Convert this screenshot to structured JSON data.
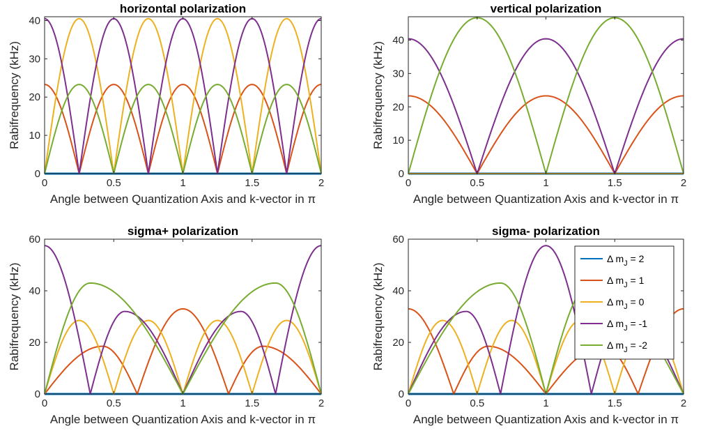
{
  "chart_data": [
    {
      "type": "line",
      "title": "horizontal polarization",
      "xlabel": "Angle between Quantization Axis and k-vector in π",
      "ylabel": "Rabifrequency (kHz)",
      "xlim": [
        0,
        2
      ],
      "ylim": [
        0,
        41
      ],
      "xticks": [
        "0",
        "0.5",
        "1",
        "1.5",
        "2"
      ],
      "yticks": [
        "0",
        "10",
        "20",
        "30",
        "40"
      ],
      "grid": false,
      "series": [
        {
          "name": "Δ m_J = 2",
          "color": "#0072BD",
          "x": [
            0,
            2
          ],
          "values": [
            0,
            0
          ]
        },
        {
          "name": "Δ m_J = 1",
          "color": "#D95319",
          "x": [
            0,
            0.25,
            0.5,
            0.75,
            1,
            1.25,
            1.5,
            1.75,
            2
          ],
          "values": [
            23.3,
            0,
            23.3,
            0,
            23.3,
            0,
            23.3,
            0,
            23.3
          ]
        },
        {
          "name": "Δ m_J = 0",
          "color": "#EDB120",
          "x": [
            0,
            0.25,
            0.5,
            0.75,
            1,
            1.25,
            1.5,
            1.75,
            2
          ],
          "values": [
            0,
            40.5,
            0,
            40.5,
            0,
            40.5,
            0,
            40.5,
            0
          ]
        },
        {
          "name": "Δ m_J = -1",
          "color": "#7E2F8E",
          "x": [
            0,
            0.25,
            0.5,
            0.75,
            1,
            1.25,
            1.5,
            1.75,
            2
          ],
          "values": [
            40.5,
            0,
            40.5,
            0,
            40.5,
            0,
            40.5,
            0,
            40.5
          ]
        },
        {
          "name": "Δ m_J = -2",
          "color": "#77AC30",
          "x": [
            0,
            0.25,
            0.5,
            0.75,
            1,
            1.25,
            1.5,
            1.75,
            2
          ],
          "values": [
            0,
            23.3,
            0,
            23.3,
            0,
            23.3,
            0,
            23.3,
            0
          ]
        }
      ]
    },
    {
      "type": "line",
      "title": "vertical polarization",
      "xlabel": "Angle between Quantization Axis and k-vector in π",
      "ylabel": "Rabifrequency (kHz)",
      "xlim": [
        0,
        2
      ],
      "ylim": [
        0,
        47
      ],
      "xticks": [
        "0",
        "0.5",
        "1",
        "1.5",
        "2"
      ],
      "yticks": [
        "0",
        "10",
        "20",
        "30",
        "40"
      ],
      "grid": false,
      "series": [
        {
          "name": "Δ m_J = 2",
          "color": "#0072BD",
          "x": [
            0,
            2
          ],
          "values": [
            0,
            0
          ]
        },
        {
          "name": "Δ m_J = 1",
          "color": "#D95319",
          "x": [
            0,
            0.5,
            1,
            1.5,
            2
          ],
          "values": [
            23.3,
            0,
            23.3,
            0,
            23.3
          ]
        },
        {
          "name": "Δ m_J = 0",
          "color": "#EDB120",
          "x": [
            0,
            2
          ],
          "values": [
            0,
            0
          ]
        },
        {
          "name": "Δ m_J = -1",
          "color": "#7E2F8E",
          "x": [
            0,
            0.5,
            1,
            1.5,
            2
          ],
          "values": [
            40.4,
            0,
            40.4,
            0,
            40.4
          ]
        },
        {
          "name": "Δ m_J = -2",
          "color": "#77AC30",
          "x": [
            0,
            0.5,
            1,
            1.5,
            2
          ],
          "values": [
            0,
            46.7,
            0,
            46.7,
            0
          ]
        }
      ]
    },
    {
      "type": "line",
      "title": "sigma+ polarization",
      "xlabel": "Angle between Quantization Axis and k-vector in π",
      "ylabel": "Rabifrequency (kHz)",
      "xlim": [
        0,
        2
      ],
      "ylim": [
        0,
        60
      ],
      "xticks": [
        "0",
        "0.5",
        "1",
        "1.5",
        "2"
      ],
      "yticks": [
        "0",
        "20",
        "40",
        "60"
      ],
      "grid": false,
      "series": [
        {
          "name": "Δ m_J = 2",
          "color": "#0072BD",
          "x": [
            0,
            2
          ],
          "values": [
            0,
            0
          ]
        },
        {
          "name": "Δ m_J = 1",
          "color": "#D95319",
          "x": [
            0,
            0.42,
            0.67,
            1,
            1.33,
            1.58,
            2
          ],
          "values": [
            0,
            18.5,
            0,
            33,
            0,
            18.5,
            0
          ]
        },
        {
          "name": "Δ m_J = 0",
          "color": "#EDB120",
          "x": [
            0,
            0.25,
            0.5,
            0.75,
            1,
            1.25,
            1.5,
            1.75,
            2
          ],
          "values": [
            0,
            28.5,
            0,
            28.5,
            0,
            28.5,
            0,
            28.5,
            0
          ]
        },
        {
          "name": "Δ m_J = -1",
          "color": "#7E2F8E",
          "x": [
            0,
            0.33,
            0.58,
            1,
            1.42,
            1.67,
            2
          ],
          "values": [
            57.5,
            0,
            32,
            0,
            32,
            0,
            57.5
          ]
        },
        {
          "name": "Δ m_J = -2",
          "color": "#77AC30",
          "x": [
            0,
            0.33,
            1,
            1.67,
            2
          ],
          "values": [
            0,
            43,
            0,
            43,
            0
          ]
        }
      ]
    },
    {
      "type": "line",
      "title": "sigma- polarization",
      "xlabel": "Angle between Quantization Axis and k-vector in π",
      "ylabel": "Rabifrequency (kHz)",
      "xlim": [
        0,
        2
      ],
      "ylim": [
        0,
        60
      ],
      "xticks": [
        "0",
        "0.5",
        "1",
        "1.5",
        "2"
      ],
      "yticks": [
        "0",
        "20",
        "40",
        "60"
      ],
      "grid": false,
      "legend": {
        "location": "top-right",
        "entries": [
          "Δ m_J = 2",
          "Δ m_J = 1",
          "Δ m_J = 0",
          "Δ m_J = -1",
          "Δ m_J = -2"
        ]
      },
      "series": [
        {
          "name": "Δ m_J = 2",
          "color": "#0072BD",
          "x": [
            0,
            2
          ],
          "values": [
            0,
            0
          ]
        },
        {
          "name": "Δ m_J = 1",
          "color": "#D95319",
          "x": [
            0,
            0.33,
            0.58,
            1,
            1.42,
            1.67,
            2
          ],
          "values": [
            33,
            0,
            18.5,
            0,
            18.5,
            0,
            33
          ]
        },
        {
          "name": "Δ m_J = 0",
          "color": "#EDB120",
          "x": [
            0,
            0.25,
            0.5,
            0.75,
            1,
            1.25,
            1.5,
            1.75,
            2
          ],
          "values": [
            0,
            28.5,
            0,
            28.5,
            0,
            28.5,
            0,
            28.5,
            0
          ]
        },
        {
          "name": "Δ m_J = -1",
          "color": "#7E2F8E",
          "x": [
            0,
            0.42,
            0.67,
            1,
            1.33,
            1.58,
            2
          ],
          "values": [
            0,
            32,
            0,
            57.5,
            0,
            32,
            0
          ]
        },
        {
          "name": "Δ m_J = -2",
          "color": "#77AC30",
          "x": [
            0,
            0.67,
            1,
            1.33,
            2
          ],
          "values": [
            0,
            43,
            0,
            43,
            0
          ]
        }
      ]
    }
  ]
}
